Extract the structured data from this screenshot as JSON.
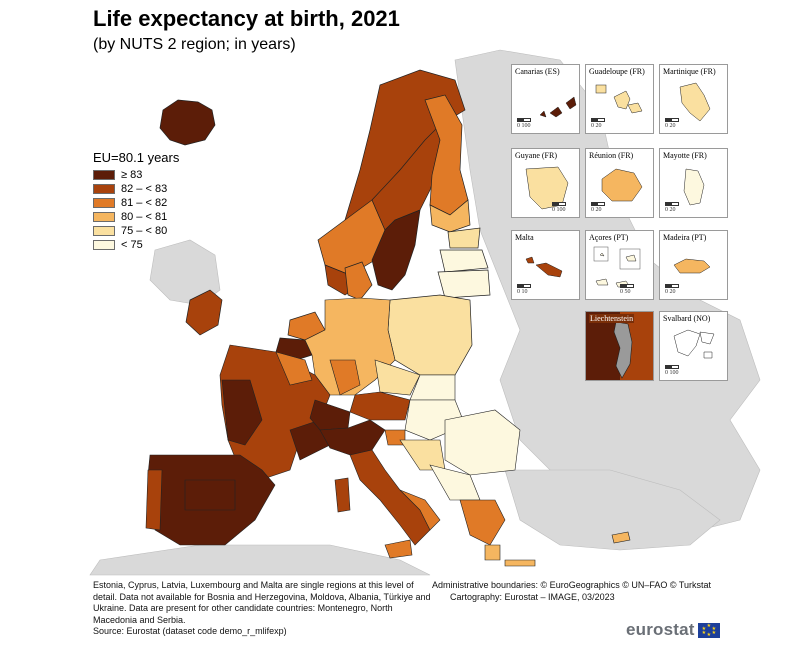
{
  "title": "Life expectancy at birth, 2021",
  "subtitle": "(by NUTS 2 region; in years)",
  "legend": {
    "title": "EU=80.1 years",
    "items": [
      {
        "label": "≥ 83",
        "color": "#5c1d08"
      },
      {
        "label": "82 – < 83",
        "color": "#a8420c"
      },
      {
        "label": "81 – < 82",
        "color": "#e07a27"
      },
      {
        "label": "80 – < 81",
        "color": "#f5b660"
      },
      {
        "label": "75 – < 80",
        "color": "#fae0a0"
      },
      {
        "label": "< 75",
        "color": "#fdf8df"
      }
    ]
  },
  "insets": [
    {
      "label": "Canarias (ES)",
      "scale": "0   100",
      "color": "#5c1d08"
    },
    {
      "label": "Guadeloupe (FR)",
      "scale": "0   20",
      "color": "#fae0a0"
    },
    {
      "label": "Martinique (FR)",
      "scale": "0   20",
      "color": "#fae0a0"
    },
    {
      "label": "Guyane (FR)",
      "scale": "0   100",
      "color": "#fae0a0"
    },
    {
      "label": "Réunion (FR)",
      "scale": "0   20",
      "color": "#f5b660"
    },
    {
      "label": "Mayotte (FR)",
      "scale": "0   20",
      "color": "#fdf8df"
    },
    {
      "label": "Malta",
      "scale": "0   10",
      "color": "#a8420c"
    },
    {
      "label": "Açores (PT)",
      "scale": "0   50",
      "color": "#fdf8df"
    },
    {
      "label": "Madeira (PT)",
      "scale": "0   20",
      "color": "#f5b660"
    },
    {
      "label": "Liechtenstein",
      "scale": "",
      "color": "#5c1d08"
    },
    {
      "label": "Svalbard (NO)",
      "scale": "0   100",
      "color": "#ffffff"
    }
  ],
  "footer": {
    "notes": "Estonia, Cyprus, Latvia, Luxembourg and Malta are single regions at this level of detail. Data not available for Bosnia and Herzegovina, Moldova, Albania, Türkiye and Ukraine. Data are present for other candidate countries: Montenegro, North Macedonia and Serbia.",
    "source": "Source: Eurostat (dataset code demo_r_mlifexp)",
    "boundaries": "Administrative boundaries: © EuroGeographics © UN–FAO © Turkstat",
    "cartography": "Cartography: Eurostat – IMAGE, 03/2023"
  },
  "logo": "eurostat",
  "colors": {
    "sea": "#ffffff",
    "non_eu_land": "#d9d9d9",
    "border": "#333333"
  }
}
